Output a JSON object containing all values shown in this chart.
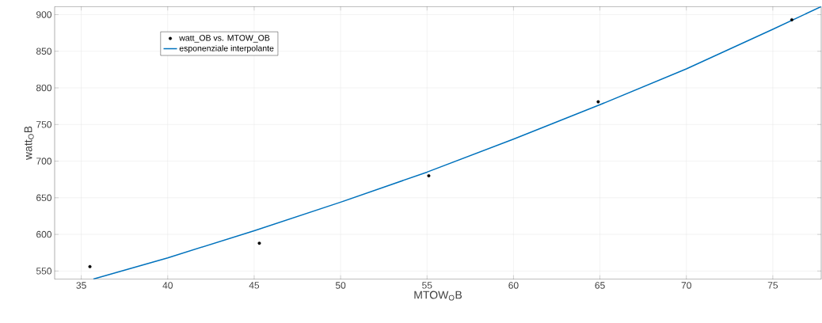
{
  "chart_data": {
    "type": "scatter",
    "xlabel": "MTOW$_{O}$B",
    "ylabel": "watt$_{O}$B",
    "xlim": [
      33.46,
      77.8
    ],
    "ylim": [
      538.8,
      911
    ],
    "xticks": [
      35,
      40,
      45,
      50,
      55,
      60,
      65,
      70,
      75
    ],
    "yticks": [
      550,
      600,
      650,
      700,
      750,
      800,
      850,
      900
    ],
    "grid": true,
    "legend": "top left",
    "series": [
      {
        "name": "watt_OB vs. MTOW_OB",
        "marker": "circle",
        "color": "#000000",
        "x": [
          35.5,
          45.3,
          55.1,
          64.9,
          76.1
        ],
        "values": [
          556,
          588,
          680,
          781,
          893
        ]
      },
      {
        "name": "esponenziale interpolante",
        "type": "line",
        "marker": "none",
        "line_style": "solid",
        "color": "#0072bd",
        "x": [
          35.7,
          40,
          45,
          50,
          55,
          60,
          65,
          70,
          75,
          77.8
        ],
        "values": [
          539,
          568,
          605,
          644,
          685,
          730,
          777,
          826,
          880,
          911
        ]
      }
    ]
  }
}
